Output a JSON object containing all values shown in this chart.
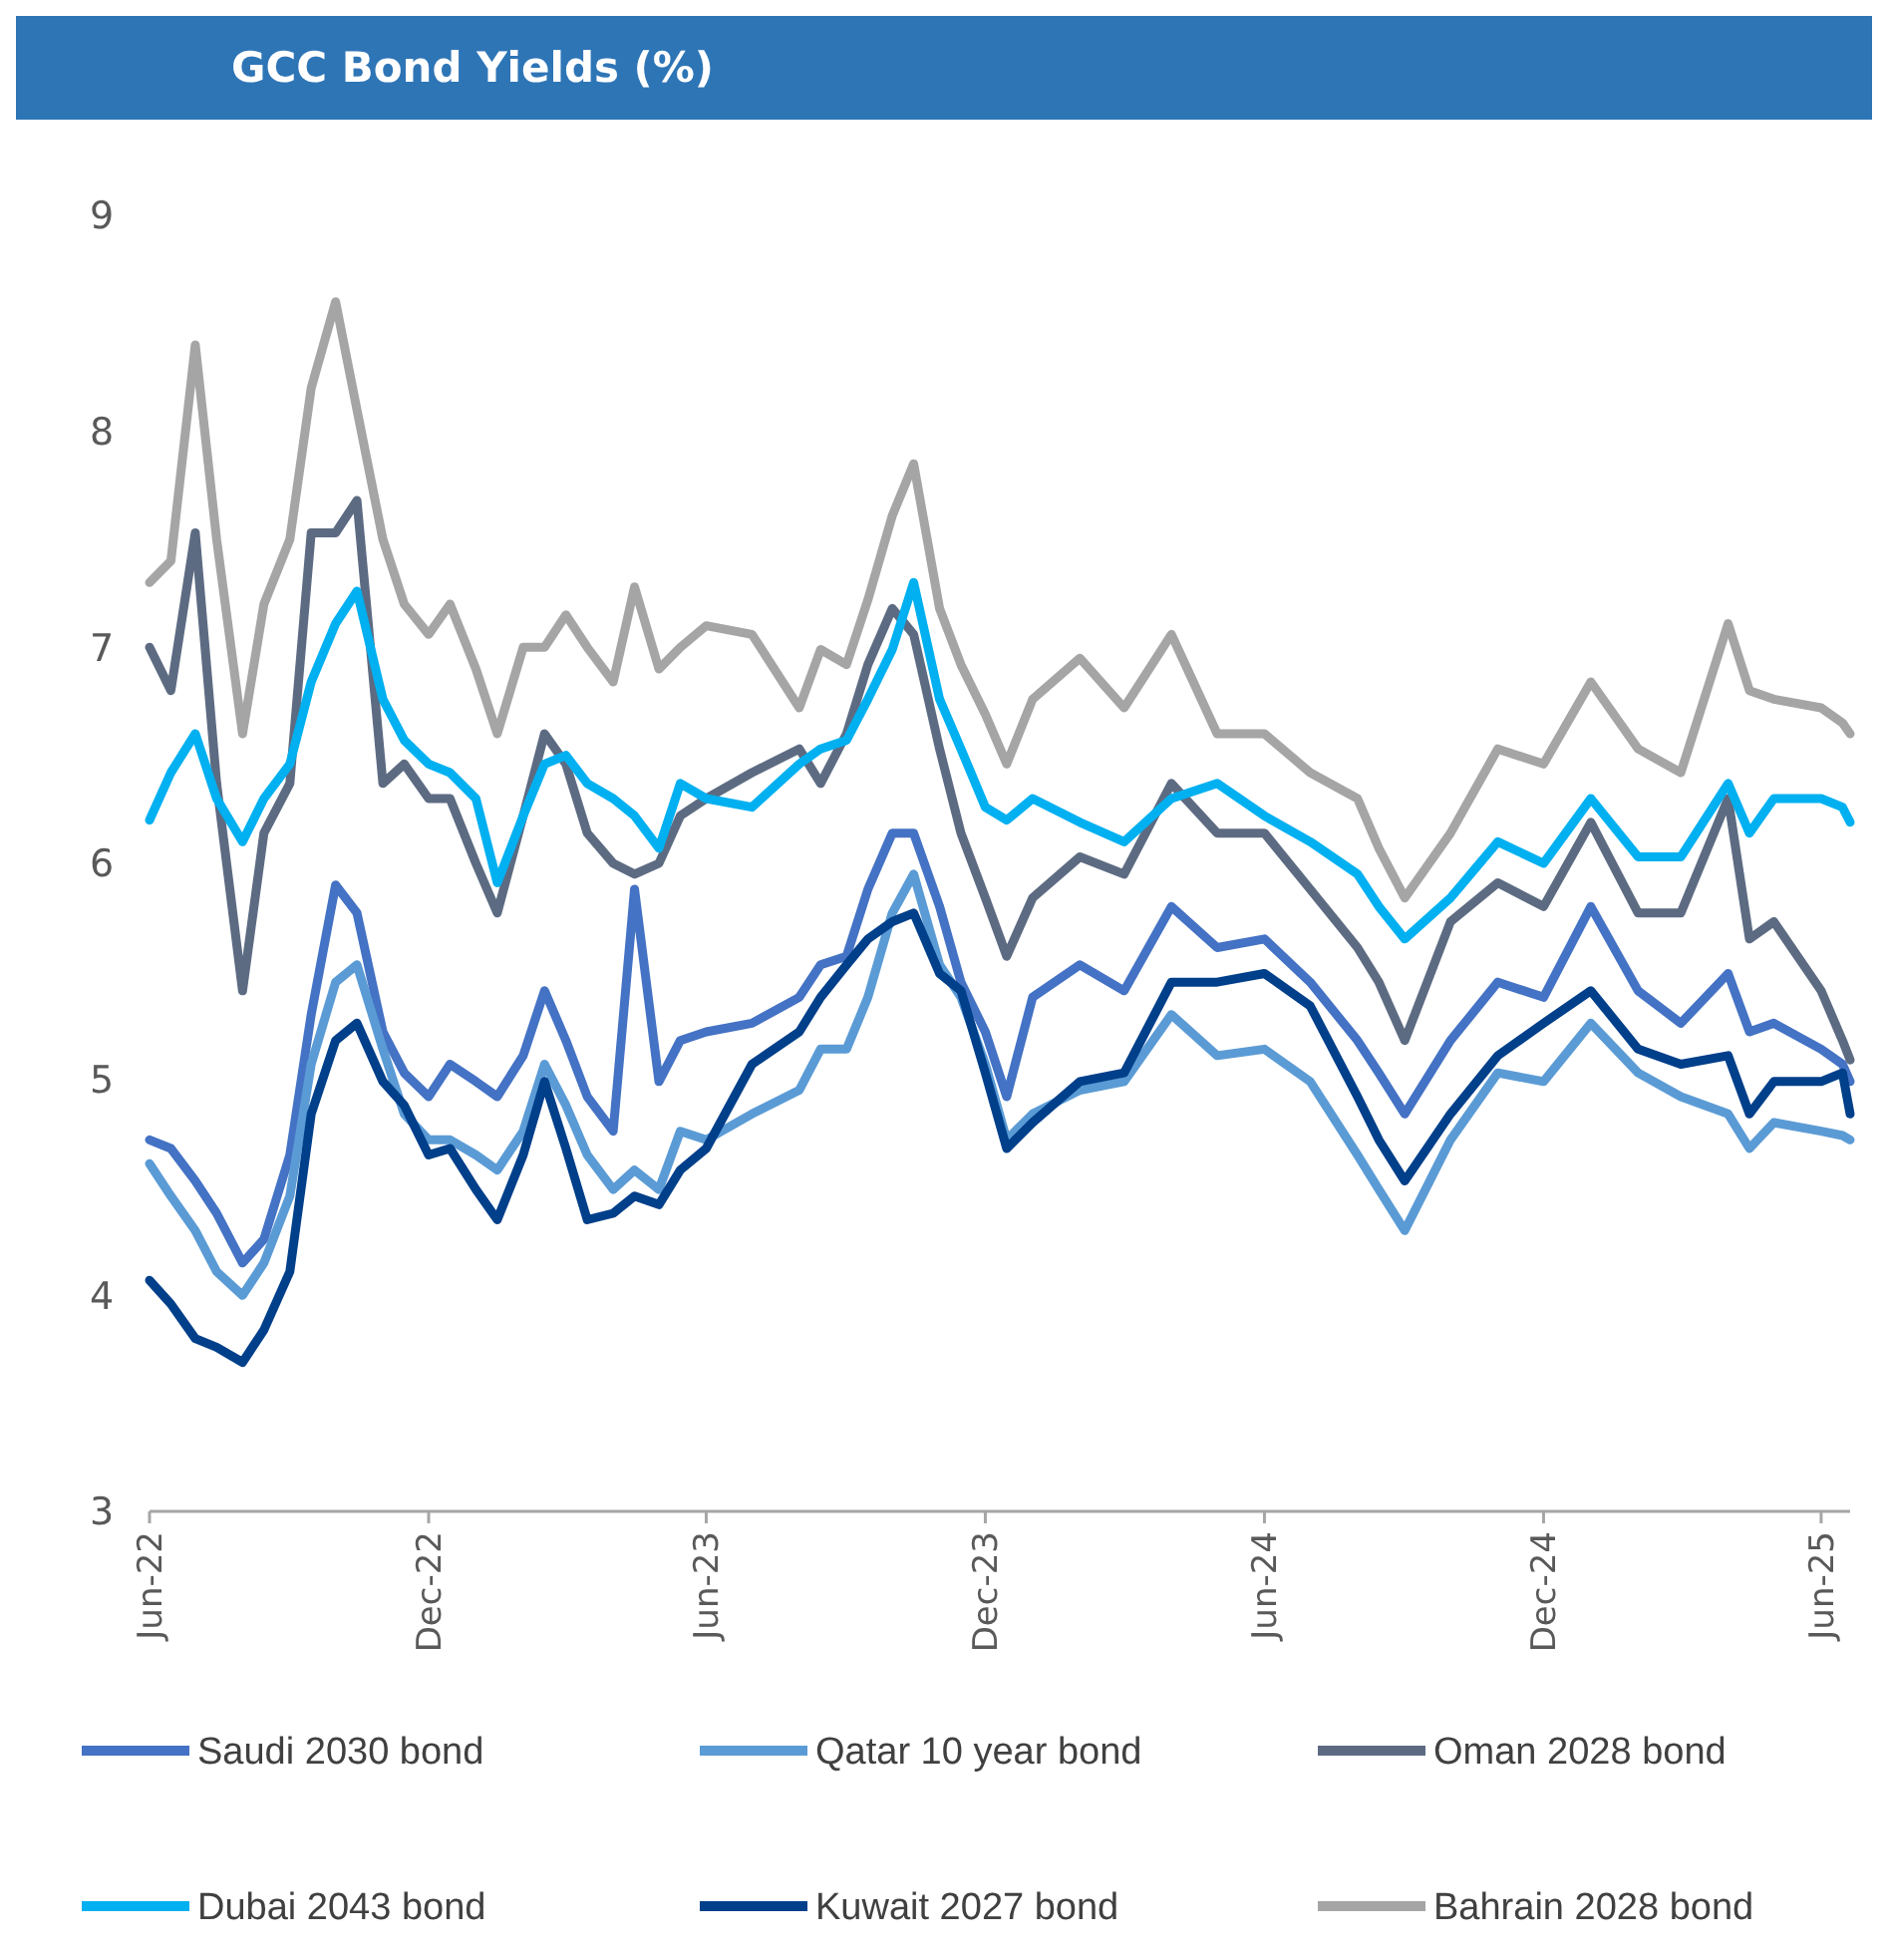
{
  "chart_data": {
    "type": "line",
    "title": "GCC Bond Yields (%)",
    "x": [
      "2022-06-01",
      "2022-06-15",
      "2022-07-01",
      "2022-07-15",
      "2022-08-01",
      "2022-08-15",
      "2022-09-01",
      "2022-09-15",
      "2022-10-01",
      "2022-10-15",
      "2022-11-01",
      "2022-11-15",
      "2022-12-01",
      "2022-12-15",
      "2023-01-01",
      "2023-01-15",
      "2023-02-01",
      "2023-02-15",
      "2023-03-01",
      "2023-03-15",
      "2023-04-01",
      "2023-04-15",
      "2023-05-01",
      "2023-05-15",
      "2023-06-01",
      "2023-07-01",
      "2023-08-01",
      "2023-08-15",
      "2023-09-01",
      "2023-09-15",
      "2023-10-01",
      "2023-10-15",
      "2023-11-01",
      "2023-11-15",
      "2023-12-01",
      "2023-12-15",
      "2024-01-01",
      "2024-02-01",
      "2024-03-01",
      "2024-04-01",
      "2024-05-01",
      "2024-06-01",
      "2024-07-01",
      "2024-08-01",
      "2024-08-15",
      "2024-09-01",
      "2024-10-01",
      "2024-11-01",
      "2024-12-01",
      "2025-01-01",
      "2025-02-01",
      "2025-03-01",
      "2025-04-01",
      "2025-04-15",
      "2025-05-01",
      "2025-06-01",
      "2025-06-15",
      "2025-06-20"
    ],
    "series": [
      {
        "name": "Saudi 2030 bond",
        "color": "#4472c4",
        "values": [
          4.72,
          4.68,
          4.53,
          4.38,
          4.15,
          4.26,
          4.65,
          5.3,
          5.9,
          5.77,
          5.22,
          5.03,
          4.92,
          5.07,
          4.99,
          4.92,
          5.11,
          5.41,
          5.18,
          4.92,
          4.76,
          5.88,
          4.99,
          5.18,
          5.22,
          5.26,
          5.38,
          5.53,
          5.57,
          5.88,
          6.14,
          6.14,
          5.8,
          5.45,
          5.22,
          4.92,
          5.38,
          5.53,
          5.41,
          5.8,
          5.61,
          5.65,
          5.45,
          5.18,
          5.03,
          4.84,
          5.18,
          5.45,
          5.38,
          5.8,
          5.41,
          5.26,
          5.49,
          5.22,
          5.26,
          5.14,
          5.07,
          4.99
        ]
      },
      {
        "name": "Qatar 10 year bond",
        "color": "#5b9bd5",
        "values": [
          4.61,
          4.46,
          4.3,
          4.11,
          4.0,
          4.15,
          4.46,
          5.07,
          5.45,
          5.53,
          5.14,
          4.84,
          4.72,
          4.72,
          4.65,
          4.58,
          4.76,
          5.07,
          4.88,
          4.65,
          4.49,
          4.58,
          4.49,
          4.76,
          4.72,
          4.84,
          4.95,
          5.14,
          5.14,
          5.38,
          5.77,
          5.95,
          5.53,
          5.38,
          5.07,
          4.72,
          4.84,
          4.95,
          4.99,
          5.3,
          5.11,
          5.14,
          4.99,
          4.65,
          4.49,
          4.3,
          4.72,
          5.03,
          4.99,
          5.26,
          5.03,
          4.92,
          4.84,
          4.68,
          4.8,
          4.76,
          4.74,
          4.72
        ]
      },
      {
        "name": "Oman 2028 bond",
        "color": "#5d6b82",
        "values": [
          7.0,
          6.8,
          7.53,
          6.37,
          5.41,
          6.14,
          6.37,
          7.53,
          7.53,
          7.68,
          6.37,
          6.46,
          6.3,
          6.3,
          6.0,
          5.77,
          6.22,
          6.6,
          6.46,
          6.14,
          6.0,
          5.95,
          6.0,
          6.22,
          6.3,
          6.42,
          6.53,
          6.37,
          6.6,
          6.92,
          7.18,
          7.06,
          6.53,
          6.14,
          5.84,
          5.57,
          5.84,
          6.03,
          5.95,
          6.37,
          6.14,
          6.14,
          5.88,
          5.61,
          5.45,
          5.18,
          5.73,
          5.91,
          5.8,
          6.19,
          5.77,
          5.77,
          6.3,
          5.65,
          5.73,
          5.41,
          5.18,
          5.09
        ]
      },
      {
        "name": "Dubai 2043 bond",
        "color": "#00b0f0",
        "values": [
          6.2,
          6.42,
          6.6,
          6.3,
          6.1,
          6.3,
          6.46,
          6.84,
          7.11,
          7.26,
          6.76,
          6.57,
          6.46,
          6.42,
          6.3,
          5.91,
          6.22,
          6.46,
          6.5,
          6.37,
          6.3,
          6.22,
          6.07,
          6.37,
          6.3,
          6.26,
          6.46,
          6.53,
          6.57,
          6.76,
          6.99,
          7.3,
          6.76,
          6.53,
          6.26,
          6.2,
          6.3,
          6.19,
          6.1,
          6.3,
          6.37,
          6.22,
          6.1,
          5.95,
          5.8,
          5.65,
          5.84,
          6.1,
          6.0,
          6.3,
          6.03,
          6.03,
          6.37,
          6.14,
          6.3,
          6.3,
          6.26,
          6.19
        ]
      },
      {
        "name": "Kuwait 2027 bond",
        "color": "#003f8a",
        "values": [
          4.07,
          3.96,
          3.8,
          3.76,
          3.69,
          3.84,
          4.11,
          4.84,
          5.18,
          5.26,
          4.99,
          4.88,
          4.65,
          4.68,
          4.49,
          4.35,
          4.65,
          4.99,
          4.68,
          4.35,
          4.38,
          4.46,
          4.42,
          4.58,
          4.68,
          5.07,
          5.22,
          5.38,
          5.53,
          5.65,
          5.73,
          5.77,
          5.49,
          5.41,
          5.03,
          4.68,
          4.8,
          4.99,
          5.03,
          5.45,
          5.45,
          5.49,
          5.34,
          4.92,
          4.72,
          4.53,
          4.84,
          5.11,
          5.26,
          5.41,
          5.14,
          5.07,
          5.11,
          4.84,
          4.99,
          4.99,
          5.03,
          4.84
        ]
      },
      {
        "name": "Bahrain 2028 bond",
        "color": "#a5a5a5",
        "values": [
          7.3,
          7.4,
          8.4,
          7.5,
          6.6,
          7.2,
          7.5,
          8.2,
          8.6,
          8.1,
          7.5,
          7.2,
          7.06,
          7.2,
          6.9,
          6.6,
          7.0,
          7.0,
          7.15,
          7.0,
          6.84,
          7.28,
          6.9,
          7.0,
          7.1,
          7.06,
          6.72,
          6.99,
          6.92,
          7.22,
          7.61,
          7.85,
          7.18,
          6.92,
          6.69,
          6.46,
          6.76,
          6.95,
          6.72,
          7.06,
          6.6,
          6.6,
          6.42,
          6.3,
          6.07,
          5.84,
          6.14,
          6.53,
          6.46,
          6.84,
          6.53,
          6.42,
          7.11,
          6.8,
          6.76,
          6.72,
          6.65,
          6.6
        ]
      }
    ],
    "xlim": [
      "2022-06-01",
      "2025-06-20"
    ],
    "xticks": [
      {
        "value": "2022-06-01",
        "label": "Jun-22"
      },
      {
        "value": "2022-12-01",
        "label": "Dec-22"
      },
      {
        "value": "2023-06-01",
        "label": "Jun-23"
      },
      {
        "value": "2023-12-01",
        "label": "Dec-23"
      },
      {
        "value": "2024-06-01",
        "label": "Jun-24"
      },
      {
        "value": "2024-12-01",
        "label": "Dec-24"
      },
      {
        "value": "2025-06-01",
        "label": "Jun-25"
      }
    ],
    "ylim": [
      3,
      9
    ],
    "yticks": [
      3,
      4,
      5,
      6,
      7,
      8,
      9
    ],
    "grid": false,
    "legend": "bottom",
    "line_style": "solid",
    "marker": "none"
  }
}
